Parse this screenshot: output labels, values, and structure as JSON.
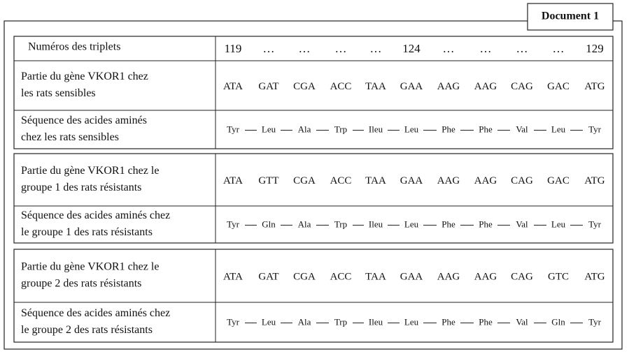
{
  "badge": "Document 1",
  "table": {
    "header": {
      "label": "Numéros des triplets",
      "cells": [
        "119",
        "…",
        "…",
        "…",
        "…",
        "124",
        "…",
        "…",
        "…",
        "…",
        "129"
      ]
    },
    "blocks": [
      {
        "gene": {
          "label": [
            "Partie du gène VKOR1 chez",
            "les rats sensibles"
          ],
          "cells": [
            "ATA",
            "GAT",
            "CGA",
            "ACC",
            "TAA",
            "GAA",
            "AAG",
            "AAG",
            "CAG",
            "GAC",
            "ATG"
          ]
        },
        "amino": {
          "label": [
            "Séquence des acides aminés",
            "chez  les rats sensibles"
          ],
          "cells": [
            "Tyr",
            "Leu",
            "Ala",
            "Trp",
            "Ileu",
            "Leu",
            "Phe",
            "Phe",
            "Val",
            "Leu",
            "Tyr"
          ]
        }
      },
      {
        "gene": {
          "label": [
            "Partie du gène VKOR1 chez le",
            "groupe 1 des rats résistants"
          ],
          "cells": [
            "ATA",
            "GTT",
            "CGA",
            "ACC",
            "TAA",
            "GAA",
            "AAG",
            "AAG",
            "CAG",
            "GAC",
            "ATG"
          ]
        },
        "amino": {
          "label": [
            "Séquence des acides aminés chez",
            "le groupe 1 des rats résistants"
          ],
          "cells": [
            "Tyr",
            "Gln",
            "Ala",
            "Trp",
            "Ileu",
            "Leu",
            "Phe",
            "Phe",
            "Val",
            "Leu",
            "Tyr"
          ]
        }
      },
      {
        "gene": {
          "label": [
            "Partie du gène VKOR1 chez le",
            "groupe 2 des rats résistants"
          ],
          "cells": [
            "ATA",
            "GAT",
            "CGA",
            "ACC",
            "TAA",
            "GAA",
            "AAG",
            "AAG",
            "CAG",
            "GTC",
            "ATG"
          ]
        },
        "amino": {
          "label": [
            "Séquence des acides aminés chez",
            "le groupe 2 des rats résistants"
          ],
          "cells": [
            "Tyr",
            "Leu",
            "Ala",
            "Trp",
            "Ileu",
            "Leu",
            "Phe",
            "Phe",
            "Val",
            "Gln",
            "Tyr"
          ]
        }
      }
    ]
  }
}
